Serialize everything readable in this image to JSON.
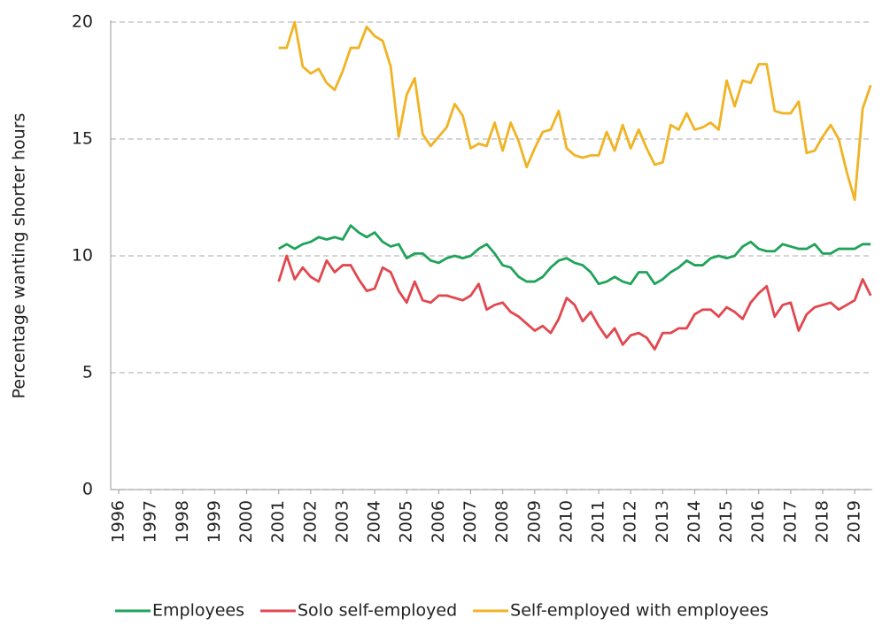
{
  "chart_data": {
    "type": "line",
    "y_label": "Percentage wanting shorter hours",
    "x": [
      2001,
      2001.25,
      2001.5,
      2001.75,
      2002,
      2002.25,
      2002.5,
      2002.75,
      2003,
      2003.25,
      2003.5,
      2003.75,
      2004,
      2004.25,
      2004.5,
      2004.75,
      2005,
      2005.25,
      2005.5,
      2005.75,
      2006,
      2006.25,
      2006.5,
      2006.75,
      2007,
      2007.25,
      2007.5,
      2007.75,
      2008,
      2008.25,
      2008.5,
      2008.75,
      2009,
      2009.25,
      2009.5,
      2009.75,
      2010,
      2010.25,
      2010.5,
      2010.75,
      2011,
      2011.25,
      2011.5,
      2011.75,
      2012,
      2012.25,
      2012.5,
      2012.75,
      2013,
      2013.25,
      2013.5,
      2013.75,
      2014,
      2014.25,
      2014.5,
      2014.75,
      2015,
      2015.25,
      2015.5,
      2015.75,
      2016,
      2016.25,
      2016.5,
      2016.75,
      2017,
      2017.25,
      2017.5,
      2017.75,
      2018,
      2018.25,
      2018.5,
      2018.75,
      2019,
      2019.25,
      2019.5
    ],
    "series": [
      {
        "name": "Employees",
        "color": "#1fa35a",
        "values": [
          10.3,
          10.5,
          10.3,
          10.5,
          10.6,
          10.8,
          10.7,
          10.8,
          10.7,
          11.3,
          11.0,
          10.8,
          11.0,
          10.6,
          10.4,
          10.5,
          9.9,
          10.1,
          10.1,
          9.8,
          9.7,
          9.9,
          10.0,
          9.9,
          10.0,
          10.3,
          10.5,
          10.1,
          9.6,
          9.5,
          9.1,
          8.9,
          8.9,
          9.1,
          9.5,
          9.8,
          9.9,
          9.7,
          9.6,
          9.3,
          8.8,
          8.9,
          9.1,
          8.9,
          8.8,
          9.3,
          9.3,
          8.8,
          9.0,
          9.3,
          9.5,
          9.8,
          9.6,
          9.6,
          9.9,
          10.0,
          9.9,
          10.0,
          10.4,
          10.6,
          10.3,
          10.2,
          10.2,
          10.5,
          10.4,
          10.3,
          10.3,
          10.5,
          10.1,
          10.1,
          10.3,
          10.3,
          10.3,
          10.5,
          10.5
        ]
      },
      {
        "name": "Solo self-employed",
        "color": "#e2474f",
        "values": [
          8.9,
          10.0,
          9.0,
          9.5,
          9.1,
          8.9,
          9.8,
          9.3,
          9.6,
          9.6,
          9.0,
          8.5,
          8.6,
          9.5,
          9.3,
          8.5,
          8.0,
          8.9,
          8.1,
          8.0,
          8.3,
          8.3,
          8.2,
          8.1,
          8.3,
          8.8,
          7.7,
          7.9,
          8.0,
          7.6,
          7.4,
          7.1,
          6.8,
          7.0,
          6.7,
          7.3,
          8.2,
          7.9,
          7.2,
          7.6,
          7.0,
          6.5,
          6.9,
          6.2,
          6.6,
          6.7,
          6.5,
          6.0,
          6.7,
          6.7,
          6.9,
          6.9,
          7.5,
          7.7,
          7.7,
          7.4,
          7.8,
          7.6,
          7.3,
          8.0,
          8.4,
          8.7,
          7.4,
          7.9,
          8.0,
          6.8,
          7.5,
          7.8,
          7.9,
          8.0,
          7.7,
          7.9,
          8.1,
          9.0,
          8.3
        ]
      },
      {
        "name": "Self-employed with employees",
        "color": "#f0b323",
        "values": [
          18.9,
          18.9,
          20.0,
          18.1,
          17.8,
          18.0,
          17.4,
          17.1,
          17.9,
          18.9,
          18.9,
          19.8,
          19.4,
          19.2,
          18.1,
          15.1,
          16.9,
          17.6,
          15.2,
          14.7,
          15.1,
          15.5,
          16.5,
          16.0,
          14.6,
          14.8,
          14.7,
          15.7,
          14.5,
          15.7,
          14.9,
          13.8,
          14.6,
          15.3,
          15.4,
          16.2,
          14.6,
          14.3,
          14.2,
          14.3,
          14.3,
          15.3,
          14.5,
          15.6,
          14.6,
          15.4,
          14.6,
          13.9,
          14.0,
          15.6,
          15.4,
          16.1,
          15.4,
          15.5,
          15.7,
          15.4,
          17.5,
          16.4,
          17.5,
          17.4,
          18.2,
          18.2,
          16.2,
          16.1,
          16.1,
          16.6,
          14.4,
          14.5,
          15.1,
          15.6,
          15.0,
          13.6,
          12.4,
          16.3,
          17.3
        ]
      }
    ],
    "xlim": [
      1995.75,
      2019.55
    ],
    "xticks": [
      1996,
      1997,
      1998,
      1999,
      2000,
      2001,
      2002,
      2003,
      2004,
      2005,
      2006,
      2007,
      2008,
      2009,
      2010,
      2011,
      2012,
      2013,
      2014,
      2015,
      2016,
      2017,
      2018,
      2019
    ],
    "ylim": [
      0,
      20
    ],
    "yticks": [
      0,
      5,
      10,
      15,
      20
    ],
    "grid": true,
    "legend": "bottom"
  }
}
